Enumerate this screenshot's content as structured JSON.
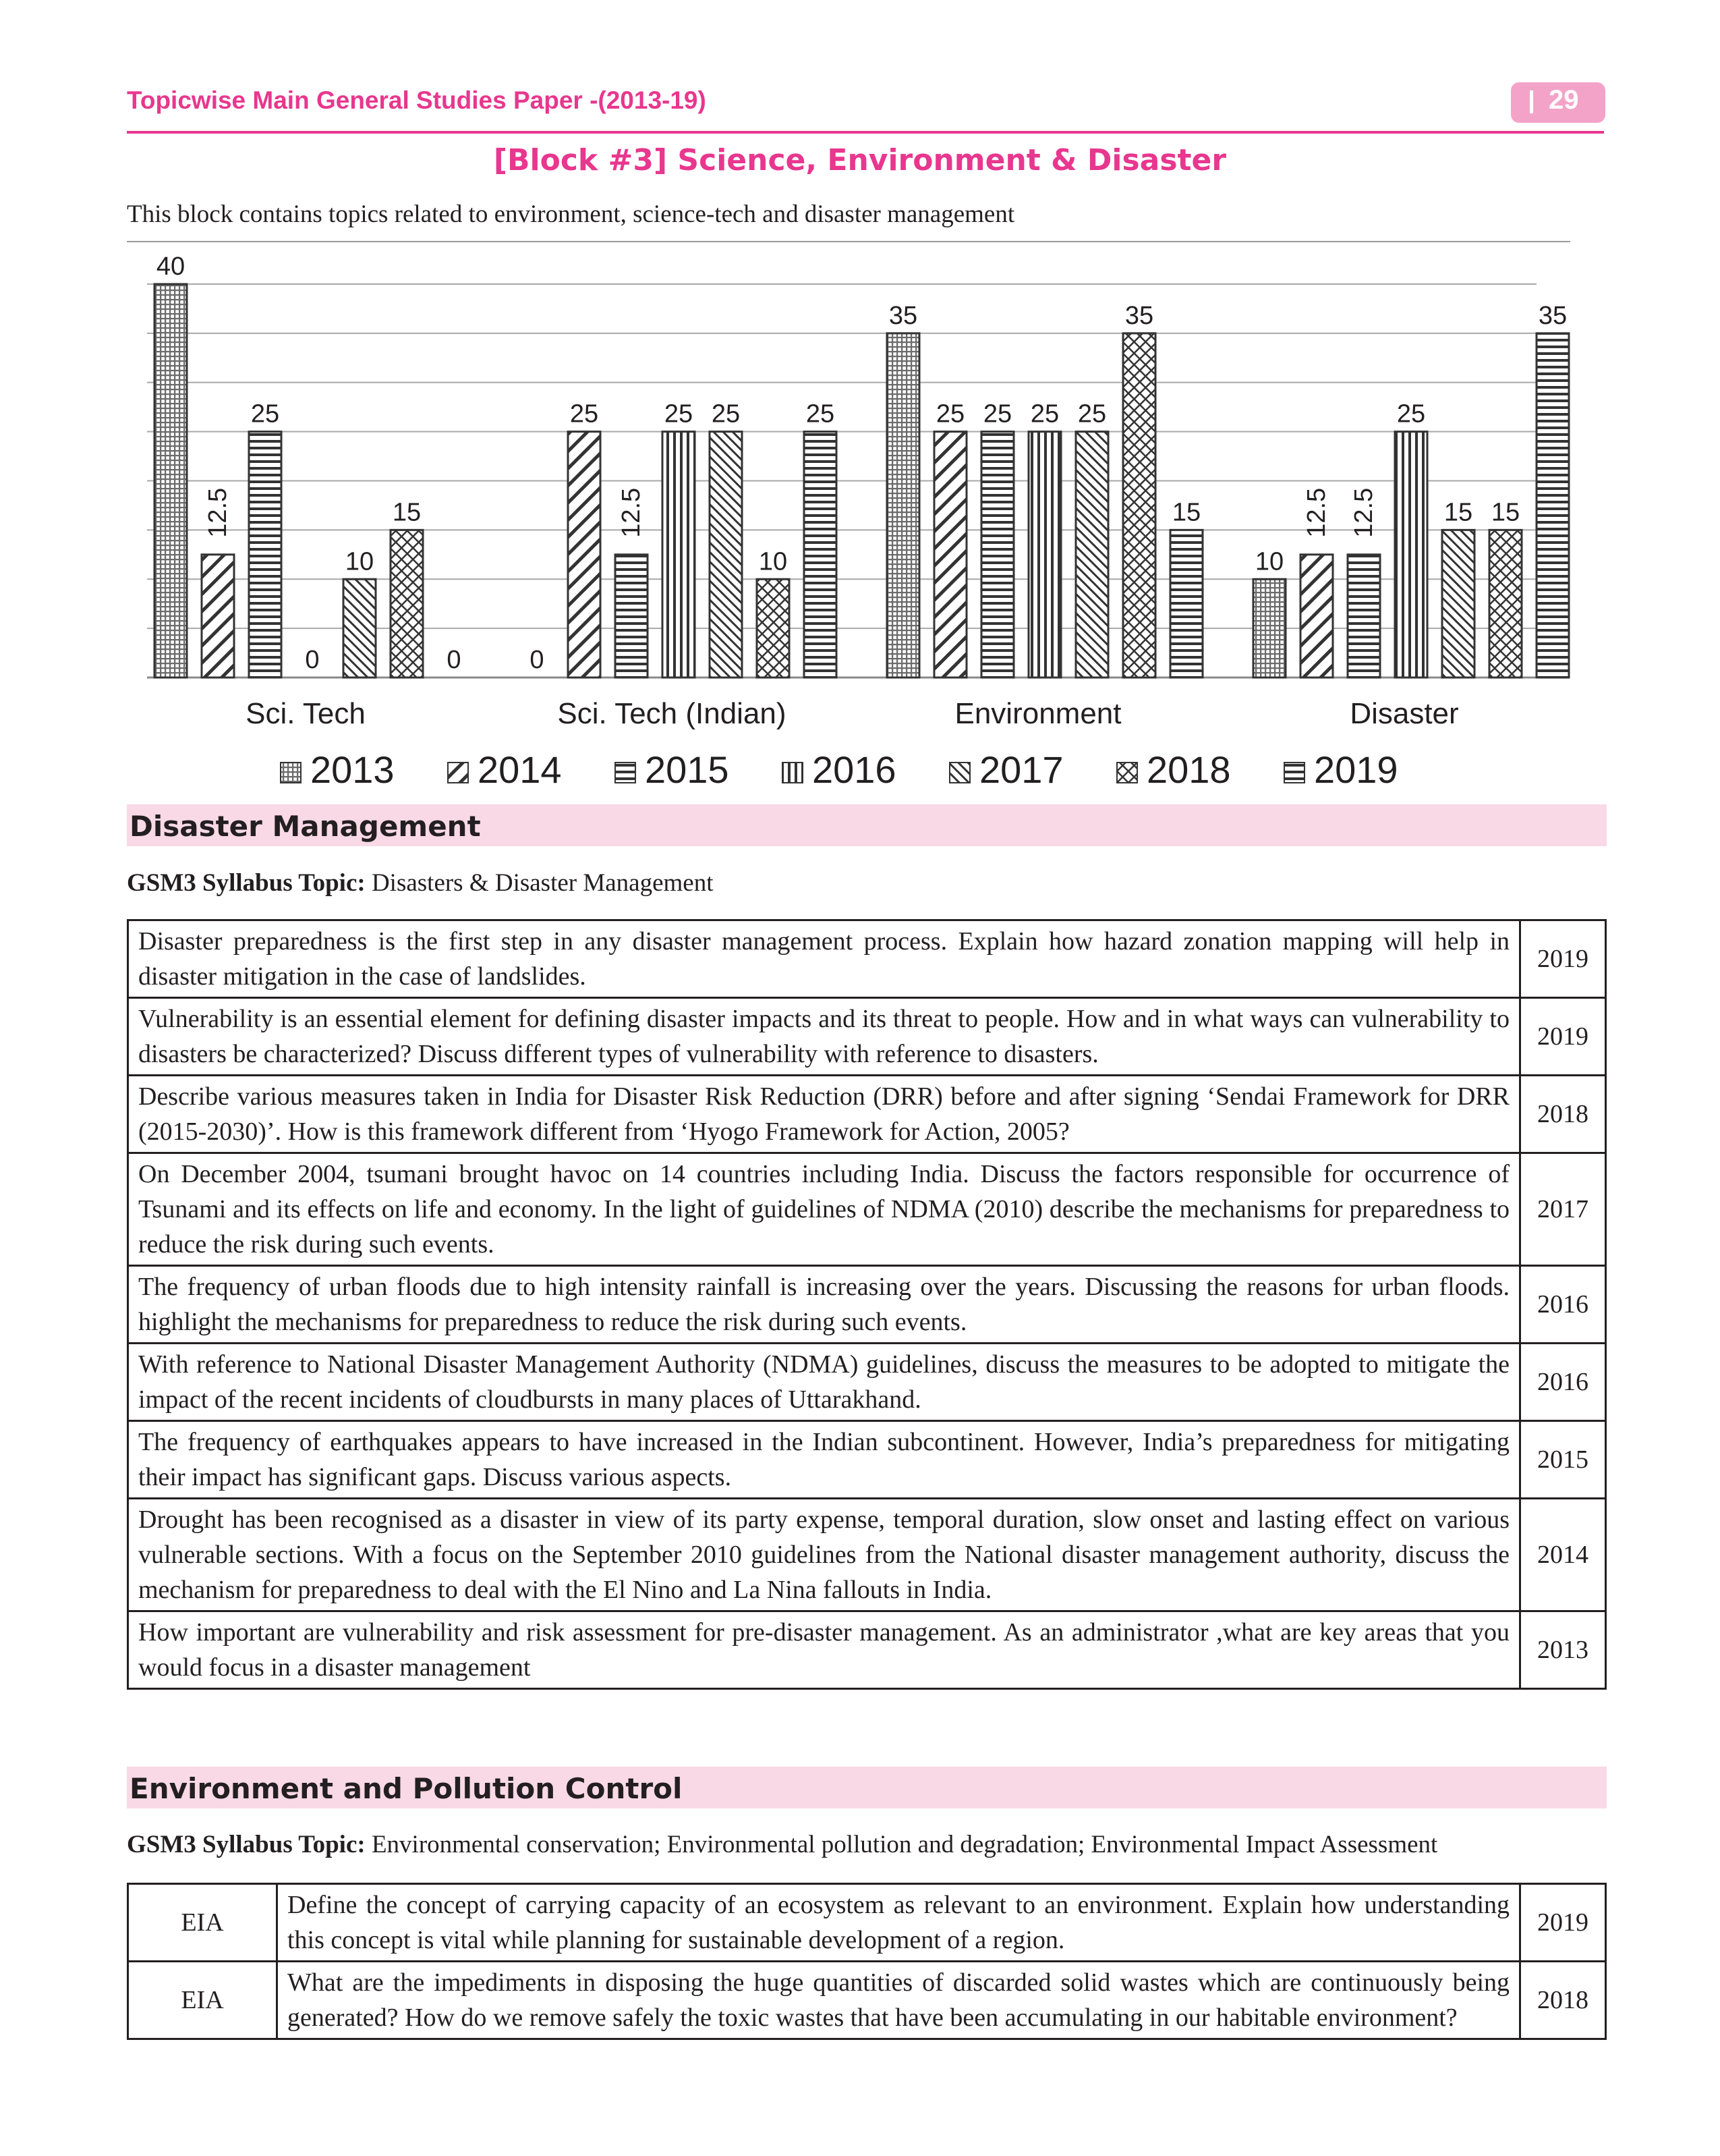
{
  "header": {
    "running_title": "Topicwise Main General Studies Paper -(2013-19)",
    "page_number": "29"
  },
  "block_title": "[Block #3] Science, Environment & Disaster",
  "block_intro": "This block contains topics related to environment, science-tech and disaster management",
  "chart_data": {
    "type": "bar",
    "title": "",
    "xlabel": "",
    "ylabel": "",
    "ylim": [
      0,
      40
    ],
    "grid": true,
    "legend_position": "bottom",
    "categories": [
      "Sci. Tech",
      "Sci. Tech (Indian)",
      "Environment",
      "Disaster"
    ],
    "series": [
      {
        "name": "2013",
        "pattern": "grid",
        "values": [
          40,
          0,
          35,
          10
        ]
      },
      {
        "name": "2014",
        "pattern": "diagonal-wide",
        "values": [
          12.5,
          25,
          25,
          12.5
        ]
      },
      {
        "name": "2015",
        "pattern": "horizontal",
        "values": [
          25,
          12.5,
          25,
          12.5
        ]
      },
      {
        "name": "2016",
        "pattern": "vertical",
        "values": [
          0,
          25,
          25,
          25
        ]
      },
      {
        "name": "2017",
        "pattern": "diagonal-narrow",
        "values": [
          10,
          25,
          25,
          15
        ]
      },
      {
        "name": "2018",
        "pattern": "crosshatch",
        "values": [
          15,
          10,
          35,
          15
        ]
      },
      {
        "name": "2019",
        "pattern": "horizontal",
        "values": [
          0,
          25,
          15,
          35
        ]
      }
    ]
  },
  "sections": {
    "disaster": {
      "heading": "Disaster Management",
      "syllabus_label": "GSM3 Syllabus Topic:",
      "syllabus_text": " Disasters & Disaster Management",
      "rows": [
        {
          "question": "Disaster preparedness is the first step in any disaster management process. Explain how hazard zonation mapping will help in disaster mitigation in the case of landslides.",
          "year": "2019"
        },
        {
          "question": "Vulnerability is an essential element for defining disaster impacts and its threat to people. How and in what ways can vulnerability to disasters be characterized? Discuss different types of vulnerability with reference to disasters.",
          "year": "2019"
        },
        {
          "question": "Describe various measures taken in India for Disaster Risk Reduction (DRR) before and after signing ‘Sendai Framework for DRR (2015-2030)’. How is this framework different from ‘Hyogo Framework for Action, 2005?",
          "year": "2018"
        },
        {
          "question": "On December 2004, tsumani brought havoc on 14 countries including India. Discuss the factors responsible for occurrence of Tsunami and its effects on life and economy. In the light of guidelines of NDMA (2010) describe the mechanisms for preparedness to reduce the risk during such events.",
          "year": "2017"
        },
        {
          "question": "The frequency of urban floods due to high intensity rainfall is increasing over the years. Discussing the reasons for urban floods. highlight the mechanisms for preparedness to reduce the risk during such events.",
          "year": "2016"
        },
        {
          "question": "With reference to National Disaster Management Authority (NDMA) guidelines, discuss the measures to be adopted to mitigate the impact of the recent incidents of cloudbursts in many places of Uttarakhand.",
          "year": "2016"
        },
        {
          "question": "The frequency of earthquakes appears to have increased in the Indian subcontinent. However, India’s preparedness for mitigating their impact has significant gaps. Discuss various aspects.",
          "year": "2015"
        },
        {
          "question": "Drought has been recognised as a disaster in view of its party expense, temporal duration, slow onset and lasting effect on various vulnerable sections. With a focus on the September 2010 guidelines from the National disaster management authority, discuss the mechanism for preparedness to deal with the El Nino and La Nina fallouts in India.",
          "year": "2014"
        },
        {
          "question": "How important are vulnerability and risk assessment for pre-disaster management. As an administrator ,what are key areas that you would focus in a disaster management",
          "year": "2013"
        }
      ]
    },
    "environment": {
      "heading": "Environment and Pollution Control",
      "syllabus_label": "GSM3 Syllabus Topic:",
      "syllabus_text": " Environmental conservation; Environmental pollution and degradation; Environmental Impact Assessment",
      "rows": [
        {
          "tag": "EIA",
          "question": "Define the concept of carrying capacity of an ecosystem as relevant to an environment. Explain how understanding this concept is vital while planning for sustainable development of a region.",
          "year": "2019"
        },
        {
          "tag": "EIA",
          "question": "What are the impediments in disposing the huge quantities of discarded solid wastes which are continuously being generated? How do we remove safely the toxic wastes that have been accumulating in our habitable environment?",
          "year": "2018"
        }
      ]
    }
  }
}
